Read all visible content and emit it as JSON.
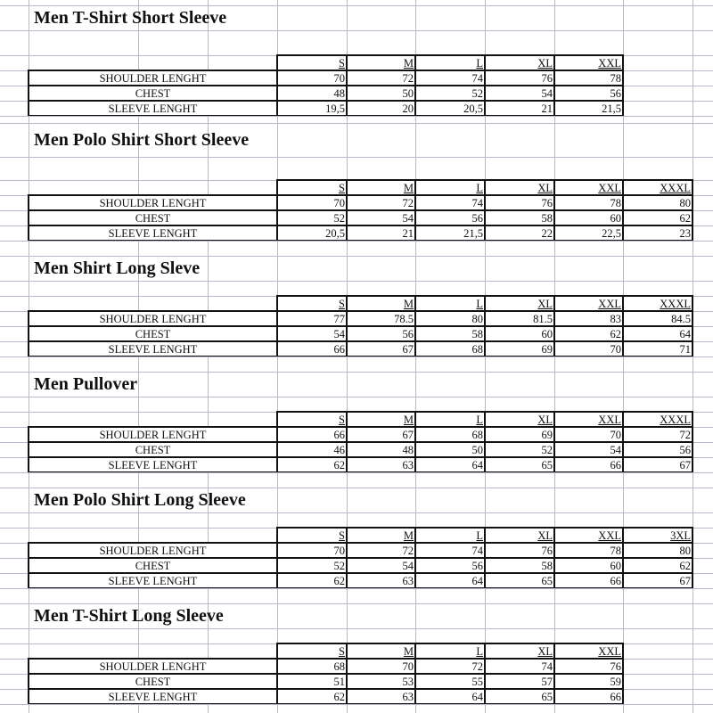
{
  "row_labels": [
    "SHOULDER LENGHT",
    "CHEST",
    "SLEEVE LENGHT"
  ],
  "sections": [
    {
      "title": "Men T-Shirt Short Sleeve",
      "sizes": [
        "S",
        "M",
        "L",
        "XL",
        "XXL"
      ],
      "rows": [
        [
          "70",
          "72",
          "74",
          "76",
          "78"
        ],
        [
          "48",
          "50",
          "52",
          "54",
          "56"
        ],
        [
          "19,5",
          "20",
          "20,5",
          "21",
          "21,5"
        ]
      ]
    },
    {
      "title": "Men Polo Shirt Short Sleeve",
      "sizes": [
        "S",
        "M",
        "L",
        "XL",
        "XXL",
        "XXXL"
      ],
      "rows": [
        [
          "70",
          "72",
          "74",
          "76",
          "78",
          "80"
        ],
        [
          "52",
          "54",
          "56",
          "58",
          "60",
          "62"
        ],
        [
          "20,5",
          "21",
          "21,5",
          "22",
          "22,5",
          "23"
        ]
      ]
    },
    {
      "title": "Men Shirt Long Sleve",
      "sizes": [
        "S",
        "M",
        "L",
        "XL",
        "XXL",
        "XXXL"
      ],
      "rows": [
        [
          "77",
          "78.5",
          "80",
          "81.5",
          "83",
          "84.5"
        ],
        [
          "54",
          "56",
          "58",
          "60",
          "62",
          "64"
        ],
        [
          "66",
          "67",
          "68",
          "69",
          "70",
          "71"
        ]
      ]
    },
    {
      "title": "Men Pullover",
      "sizes": [
        "S",
        "M",
        "L",
        "XL",
        "XXL",
        "XXXL"
      ],
      "rows": [
        [
          "66",
          "67",
          "68",
          "69",
          "70",
          "72"
        ],
        [
          "46",
          "48",
          "50",
          "52",
          "54",
          "56"
        ],
        [
          "62",
          "63",
          "64",
          "65",
          "66",
          "67"
        ]
      ]
    },
    {
      "title": "Men Polo Shirt Long Sleeve",
      "sizes": [
        "S",
        "M",
        "L",
        "XL",
        "XXL",
        "3XL"
      ],
      "rows": [
        [
          "70",
          "72",
          "74",
          "76",
          "78",
          "80"
        ],
        [
          "52",
          "54",
          "56",
          "58",
          "60",
          "62"
        ],
        [
          "62",
          "63",
          "64",
          "65",
          "66",
          "67"
        ]
      ]
    },
    {
      "title": "Men T-Shirt Long Sleeve",
      "sizes": [
        "S",
        "M",
        "L",
        "XL",
        "XXL"
      ],
      "rows": [
        [
          "68",
          "70",
          "72",
          "74",
          "76"
        ],
        [
          "51",
          "53",
          "55",
          "57",
          "59"
        ],
        [
          "62",
          "63",
          "64",
          "65",
          "66"
        ]
      ]
    }
  ]
}
